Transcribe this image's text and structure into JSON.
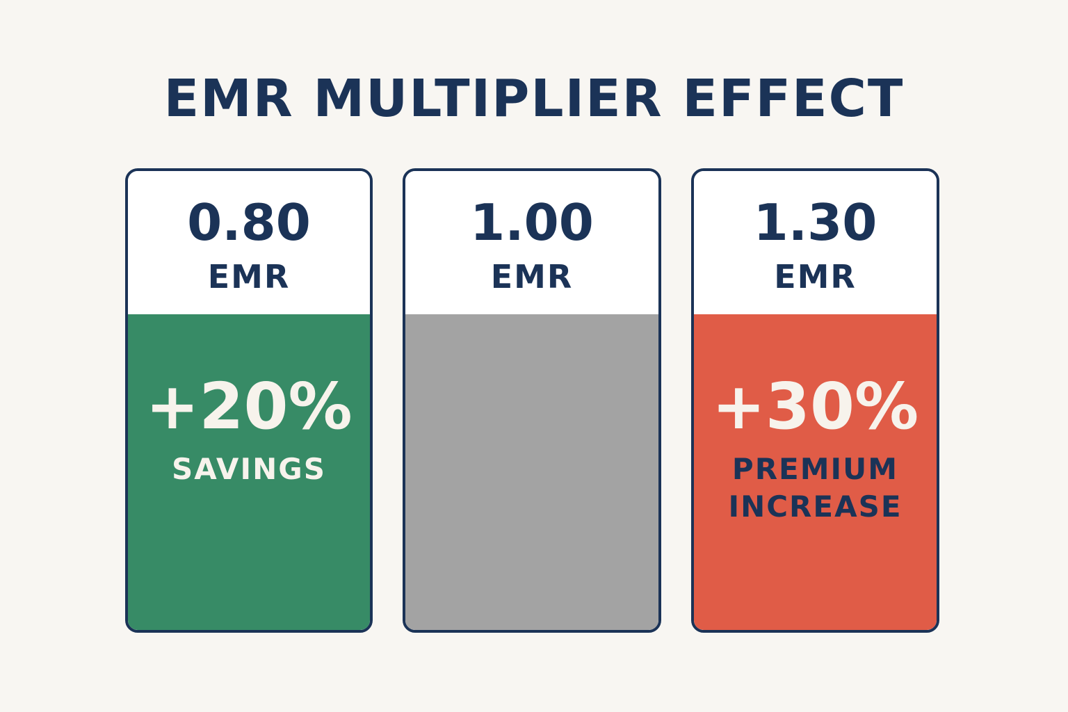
{
  "title": "EMR MULTIPLIER EFFECT",
  "colors": {
    "background": "#f8f6f2",
    "navy": "#1b3357",
    "white": "#ffffff",
    "green": "#378b66",
    "gray": "#a3a3a3",
    "red": "#e05c47",
    "light_text": "#f7f3ec"
  },
  "cards": [
    {
      "emr_value": "0.80",
      "emr_unit": "EMR",
      "change": "+20%",
      "caption_line1": "SAVINGS",
      "caption_line2": "",
      "fill_color": "#378b66",
      "caption_color": "#f7f3ec"
    },
    {
      "emr_value": "1.00",
      "emr_unit": "EMR",
      "change": "",
      "caption_line1": "",
      "caption_line2": "",
      "fill_color": "#a3a3a3",
      "caption_color": "#1b3357"
    },
    {
      "emr_value": "1.30",
      "emr_unit": "EMR",
      "change": "+30%",
      "caption_line1": "PREMIUM",
      "caption_line2": "INCREASE",
      "fill_color": "#e05c47",
      "caption_color": "#1b3357"
    }
  ]
}
